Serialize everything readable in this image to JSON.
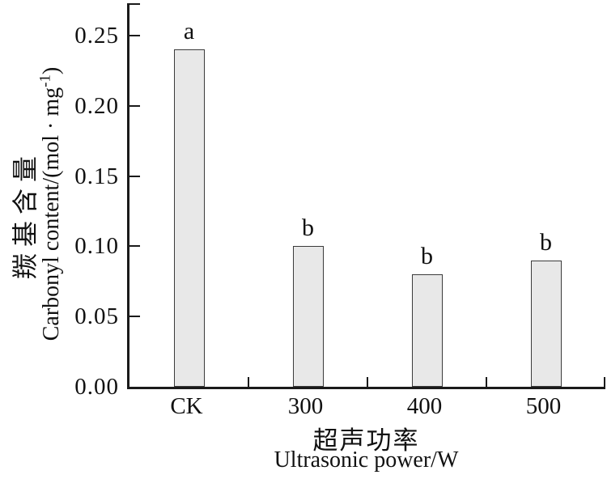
{
  "chart_data": {
    "type": "bar",
    "categories": [
      "CK",
      "300",
      "400",
      "500"
    ],
    "values": [
      0.24,
      0.1,
      0.08,
      0.09
    ],
    "sig_labels": [
      "a",
      "b",
      "b",
      "b"
    ],
    "yticks": [
      "0.00",
      "0.05",
      "0.10",
      "0.15",
      "0.20",
      "0.25"
    ],
    "ylim": [
      0,
      0.273
    ],
    "grid": "off",
    "legend": "none",
    "title": "",
    "ylabel_zh": "羰基含量",
    "ylabel_en_prefix": "Carbonyl content/(mol · mg",
    "ylabel_en_sup": "-1",
    "ylabel_en_suffix": ")",
    "xlabel_zh": "超声功率",
    "xlabel_en": "Ultrasonic power/W",
    "colors": {
      "bar_fill": "#e8e8e8",
      "bar_border": "#3b3b3b",
      "axis": "#1a1a1a",
      "text": "#111111",
      "background": "#ffffff"
    }
  }
}
